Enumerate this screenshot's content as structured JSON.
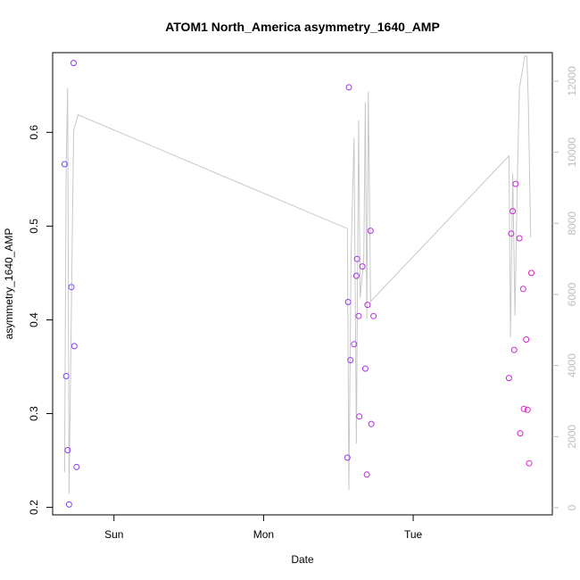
{
  "chart_data": {
    "type": "scatter",
    "title": "ATOM1 North_America asymmetry_1640_AMP",
    "xlabel": "Date",
    "ylabel": "asymmetry_1640_AMP",
    "x_unit": "days",
    "x_ticks": [
      {
        "label": "Sun",
        "value": 0
      },
      {
        "label": "Mon",
        "value": 1
      },
      {
        "label": "Tue",
        "value": 2
      }
    ],
    "xlim": [
      -0.41,
      2.93
    ],
    "ylim": [
      0.192,
      0.685
    ],
    "y_ticks": [
      0.2,
      0.3,
      0.4,
      0.5,
      0.6
    ],
    "y2lim": [
      -200,
      12800
    ],
    "y2_ticks": [
      0,
      2000,
      4000,
      6000,
      8000,
      10000,
      12000
    ],
    "grid": false,
    "colors": {
      "line": "#c8c8c8",
      "point_start": "#7a44ff",
      "point_end": "#e81cc8",
      "axis": "#000000",
      "right_axis": "#bdbdbd"
    },
    "points": [
      {
        "x": -0.33,
        "y": 0.566
      },
      {
        "x": -0.32,
        "y": 0.34
      },
      {
        "x": -0.31,
        "y": 0.261
      },
      {
        "x": -0.3,
        "y": 0.203
      },
      {
        "x": -0.285,
        "y": 0.435
      },
      {
        "x": -0.27,
        "y": 0.674
      },
      {
        "x": -0.265,
        "y": 0.372
      },
      {
        "x": -0.25,
        "y": 0.243
      },
      {
        "x": 1.56,
        "y": 0.253
      },
      {
        "x": 1.565,
        "y": 0.419
      },
      {
        "x": 1.57,
        "y": 0.648
      },
      {
        "x": 1.58,
        "y": 0.357
      },
      {
        "x": 1.605,
        "y": 0.374
      },
      {
        "x": 1.62,
        "y": 0.447
      },
      {
        "x": 1.625,
        "y": 0.465
      },
      {
        "x": 1.635,
        "y": 0.404
      },
      {
        "x": 1.64,
        "y": 0.297
      },
      {
        "x": 1.66,
        "y": 0.457
      },
      {
        "x": 1.68,
        "y": 0.348
      },
      {
        "x": 1.69,
        "y": 0.235
      },
      {
        "x": 1.695,
        "y": 0.416
      },
      {
        "x": 1.715,
        "y": 0.495
      },
      {
        "x": 1.72,
        "y": 0.289
      },
      {
        "x": 1.735,
        "y": 0.404
      },
      {
        "x": 2.64,
        "y": 0.338
      },
      {
        "x": 2.655,
        "y": 0.492
      },
      {
        "x": 2.665,
        "y": 0.516
      },
      {
        "x": 2.675,
        "y": 0.368
      },
      {
        "x": 2.685,
        "y": 0.545
      },
      {
        "x": 2.71,
        "y": 0.487
      },
      {
        "x": 2.715,
        "y": 0.279
      },
      {
        "x": 2.735,
        "y": 0.433
      },
      {
        "x": 2.74,
        "y": 0.305
      },
      {
        "x": 2.755,
        "y": 0.379
      },
      {
        "x": 2.765,
        "y": 0.304
      },
      {
        "x": 2.775,
        "y": 0.247
      },
      {
        "x": 2.79,
        "y": 0.45
      }
    ],
    "line_series": [
      {
        "x": -0.33,
        "y2": 1000
      },
      {
        "x": -0.32,
        "y2": 9500
      },
      {
        "x": -0.31,
        "y2": 11800
      },
      {
        "x": -0.3,
        "y2": 400
      },
      {
        "x": -0.27,
        "y2": 10600
      },
      {
        "x": -0.24,
        "y2": 11050
      },
      {
        "x": 1.56,
        "y2": 7850
      },
      {
        "x": 1.57,
        "y2": 500
      },
      {
        "x": 1.585,
        "y2": 7200
      },
      {
        "x": 1.605,
        "y2": 10400
      },
      {
        "x": 1.62,
        "y2": 1800
      },
      {
        "x": 1.635,
        "y2": 10900
      },
      {
        "x": 1.645,
        "y2": 5900
      },
      {
        "x": 1.67,
        "y2": 7000
      },
      {
        "x": 1.68,
        "y2": 11400
      },
      {
        "x": 1.69,
        "y2": 5300
      },
      {
        "x": 1.7,
        "y2": 11700
      },
      {
        "x": 1.715,
        "y2": 5800
      },
      {
        "x": 2.64,
        "y2": 9900
      },
      {
        "x": 2.65,
        "y2": 4800
      },
      {
        "x": 2.665,
        "y2": 9400
      },
      {
        "x": 2.68,
        "y2": 5400
      },
      {
        "x": 2.695,
        "y2": 9000
      },
      {
        "x": 2.71,
        "y2": 11800
      },
      {
        "x": 2.73,
        "y2": 12300
      },
      {
        "x": 2.745,
        "y2": 12700
      },
      {
        "x": 2.76,
        "y2": 12700
      },
      {
        "x": 2.77,
        "y2": 11300
      },
      {
        "x": 2.785,
        "y2": 7600
      }
    ]
  }
}
